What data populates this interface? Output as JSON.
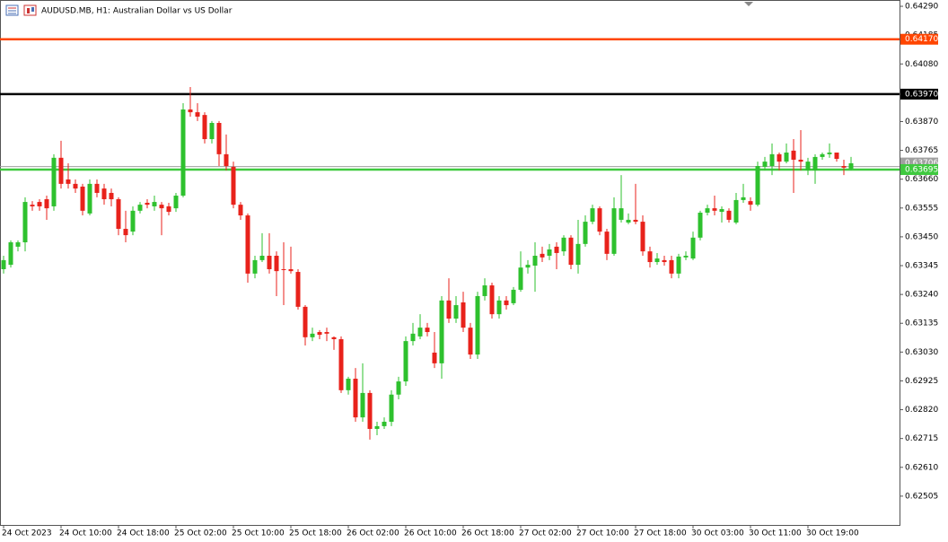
{
  "chart_data": {
    "type": "candlestick",
    "title": "AUDUSD.MB, H1:  Australian Dollar vs US Dollar",
    "categories": [
      "24 Oct 2023",
      null,
      null,
      null,
      null,
      null,
      null,
      null,
      "24 Oct 10:00",
      null,
      null,
      null,
      null,
      null,
      null,
      null,
      "24 Oct 18:00",
      null,
      null,
      null,
      null,
      null,
      null,
      null,
      "25 Oct 02:00",
      null,
      null,
      null,
      null,
      null,
      null,
      null,
      "25 Oct 10:00",
      null,
      null,
      null,
      null,
      null,
      null,
      null,
      "25 Oct 18:00",
      null,
      null,
      null,
      null,
      null,
      null,
      null,
      "26 Oct 02:00",
      null,
      null,
      null,
      null,
      null,
      null,
      null,
      "26 Oct 10:00",
      null,
      null,
      null,
      null,
      null,
      null,
      null,
      "26 Oct 18:00",
      null,
      null,
      null,
      null,
      null,
      null,
      null,
      "27 Oct 02:00",
      null,
      null,
      null,
      null,
      null,
      null,
      null,
      "27 Oct 10:00",
      null,
      null,
      null,
      null,
      null,
      null,
      null,
      "27 Oct 18:00",
      null,
      null,
      null,
      null,
      null,
      null,
      null,
      "30 Oct 03:00",
      null,
      null,
      null,
      null,
      null,
      null,
      null,
      "30 Oct 11:00",
      null,
      null,
      null,
      null,
      null,
      null,
      null,
      "30 Oct 19:00",
      null,
      null,
      null,
      null,
      null,
      null
    ],
    "open": [
      0.63332,
      0.63348,
      0.63414,
      0.6343,
      0.63567,
      0.63577,
      0.63587,
      0.63561,
      0.63738,
      0.63659,
      0.63643,
      0.63633,
      0.63535,
      0.63643,
      0.63626,
      0.6361,
      0.63587,
      0.63479,
      0.63469,
      0.63545,
      0.63574,
      0.63561,
      0.63567,
      0.63561,
      0.63554,
      0.636,
      0.63914,
      0.63904,
      0.63894,
      0.63806,
      0.63865,
      0.63751,
      0.63705,
      0.63567,
      0.63528,
      0.63316,
      0.63365,
      0.63381,
      0.63381,
      0.63332,
      0.63332,
      0.63322,
      0.63195,
      0.63084,
      0.63103,
      0.63103,
      0.63084,
      0.63077,
      0.62891,
      0.62933,
      0.62792,
      0.62881,
      0.6275,
      0.6276,
      0.62776,
      0.62875,
      0.62923,
      0.6307,
      0.63087,
      0.63119,
      0.63028,
      0.62989,
      0.63218,
      0.63152,
      0.63211,
      0.63119,
      0.63021,
      0.63234,
      0.63273,
      0.63168,
      0.63218,
      0.63208,
      0.63257,
      0.63338,
      0.63345,
      0.63388,
      0.63381,
      0.63414,
      0.63397,
      0.63447,
      0.63348,
      0.63424,
      0.63505,
      0.63554,
      0.63469,
      0.63388,
      0.63512,
      0.63502,
      0.63512,
      0.63505,
      0.63397,
      0.63358,
      0.63365,
      0.63365,
      0.63316,
      0.63375,
      0.63371,
      0.63447,
      0.63538,
      0.63554,
      0.63541,
      0.63545,
      0.63502,
      0.63584,
      0.6358,
      0.63567,
      0.63705,
      0.63708,
      0.63751,
      0.63724,
      0.63764,
      0.63731,
      0.63692,
      0.63692,
      0.63741,
      0.63751,
      0.63757,
      0.63708,
      0.63698
    ],
    "high": [
      0.63381,
      0.63437,
      0.63437,
      0.63594,
      0.6358,
      0.63587,
      0.636,
      0.63751,
      0.638,
      0.63718,
      0.63659,
      0.63643,
      0.63659,
      0.63659,
      0.63643,
      0.63626,
      0.63594,
      0.63545,
      0.63561,
      0.63577,
      0.63587,
      0.636,
      0.63577,
      0.63574,
      0.6361,
      0.63937,
      0.63996,
      0.63937,
      0.63904,
      0.63872,
      0.63872,
      0.63823,
      0.63724,
      0.63577,
      0.63535,
      0.63381,
      0.63463,
      0.63463,
      0.63397,
      0.6343,
      0.63414,
      0.63332,
      0.63201,
      0.63119,
      0.6311,
      0.63119,
      0.63087,
      0.63087,
      0.6294,
      0.62972,
      0.62989,
      0.62891,
      0.62776,
      0.62792,
      0.62891,
      0.6294,
      0.63087,
      0.63136,
      0.63168,
      0.63136,
      0.63103,
      0.63234,
      0.63299,
      0.63234,
      0.6325,
      0.63136,
      0.6325,
      0.63299,
      0.63283,
      0.63234,
      0.63234,
      0.63267,
      0.63397,
      0.63365,
      0.6343,
      0.63414,
      0.63424,
      0.6343,
      0.63456,
      0.63456,
      0.63512,
      0.63528,
      0.63567,
      0.63561,
      0.63479,
      0.63594,
      0.63675,
      0.63535,
      0.63643,
      0.63528,
      0.63414,
      0.63391,
      0.63381,
      0.63381,
      0.63388,
      0.63397,
      0.63469,
      0.63545,
      0.63567,
      0.636,
      0.63561,
      0.63554,
      0.6361,
      0.63643,
      0.63594,
      0.63724,
      0.63741,
      0.6379,
      0.63757,
      0.6379,
      0.63806,
      0.63839,
      0.63738,
      0.63751,
      0.63757,
      0.6379,
      0.63757,
      0.63731,
      0.63741
    ],
    "low": [
      0.63316,
      0.63338,
      0.63397,
      0.63397,
      0.63545,
      0.63545,
      0.63512,
      0.63545,
      0.63626,
      0.63626,
      0.6361,
      0.63528,
      0.63528,
      0.63594,
      0.63567,
      0.63561,
      0.63456,
      0.6343,
      0.63456,
      0.63535,
      0.63554,
      0.63545,
      0.63456,
      0.63528,
      0.63541,
      0.63594,
      0.63888,
      0.63872,
      0.6379,
      0.6379,
      0.63708,
      0.63692,
      0.63554,
      0.63512,
      0.63283,
      0.63299,
      0.63358,
      0.63316,
      0.63234,
      0.63201,
      0.63316,
      0.63185,
      0.63054,
      0.6307,
      0.63077,
      0.6307,
      0.63038,
      0.62881,
      0.62875,
      0.62776,
      0.62776,
      0.62711,
      0.62727,
      0.6275,
      0.6276,
      0.62858,
      0.62907,
      0.63054,
      0.63077,
      0.63087,
      0.62972,
      0.62933,
      0.63136,
      0.63136,
      0.63103,
      0.63005,
      0.63005,
      0.63218,
      0.63152,
      0.63152,
      0.63185,
      0.63201,
      0.6325,
      0.63316,
      0.6325,
      0.63358,
      0.63365,
      0.63332,
      0.63381,
      0.63332,
      0.63316,
      0.63414,
      0.63496,
      0.63456,
      0.63365,
      0.63381,
      0.63502,
      0.63496,
      0.63496,
      0.63381,
      0.63338,
      0.63348,
      0.63345,
      0.63299,
      0.63299,
      0.63365,
      0.63365,
      0.63437,
      0.63528,
      0.63528,
      0.63502,
      0.63502,
      0.63496,
      0.63574,
      0.63545,
      0.63561,
      0.63692,
      0.63675,
      0.63692,
      0.63718,
      0.6361,
      0.63692,
      0.63675,
      0.63643,
      0.63731,
      0.63738,
      0.63724,
      0.63675,
      0.63692
    ],
    "close": [
      0.63365,
      0.6343,
      0.6343,
      0.63577,
      0.63561,
      0.63561,
      0.63554,
      0.63738,
      0.63643,
      0.63643,
      0.63626,
      0.63545,
      0.63643,
      0.6361,
      0.63587,
      0.63587,
      0.63479,
      0.63456,
      0.63545,
      0.63567,
      0.63567,
      0.63577,
      0.63554,
      0.63541,
      0.636,
      0.63914,
      0.63904,
      0.63888,
      0.63806,
      0.63865,
      0.63751,
      0.63708,
      0.63567,
      0.63528,
      0.63316,
      0.63365,
      0.63381,
      0.63332,
      0.63325,
      0.63329,
      0.63325,
      0.63195,
      0.63084,
      0.63097,
      0.63093,
      0.63097,
      0.63077,
      0.62891,
      0.62933,
      0.62792,
      0.62881,
      0.6275,
      0.6276,
      0.62776,
      0.62875,
      0.62923,
      0.6307,
      0.63097,
      0.63119,
      0.63103,
      0.62989,
      0.63218,
      0.63152,
      0.63201,
      0.63119,
      0.63021,
      0.63234,
      0.63273,
      0.63168,
      0.63218,
      0.63201,
      0.63257,
      0.63338,
      0.63348,
      0.63381,
      0.63375,
      0.63404,
      0.63391,
      0.63447,
      0.63348,
      0.63424,
      0.63505,
      0.63554,
      0.63469,
      0.63388,
      0.63554,
      0.63554,
      0.63512,
      0.63505,
      0.63397,
      0.63358,
      0.63371,
      0.63358,
      0.63316,
      0.63378,
      0.63381,
      0.63447,
      0.63538,
      0.63554,
      0.63545,
      0.63551,
      0.63512,
      0.63584,
      0.63594,
      0.63567,
      0.63708,
      0.63724,
      0.63751,
      0.63724,
      0.63757,
      0.63731,
      0.63724,
      0.63724,
      0.63741,
      0.63751,
      0.63757,
      0.63734,
      0.63702,
      0.63718
    ],
    "up_color": "#2ec12e",
    "down_color": "#e8221b",
    "ylim": [
      0.624,
      0.64313
    ],
    "yticks": [
      {
        "value": 0.6429,
        "label": "0.64290"
      },
      0.64185,
      {
        "value": 0.6408,
        "label": "0.64080"
      },
      0.63975,
      {
        "value": 0.6387,
        "label": "0.63870"
      },
      0.63765,
      {
        "value": 0.6366,
        "label": "0.63660"
      },
      0.63555,
      {
        "value": 0.6345,
        "label": "0.63450"
      },
      0.63345,
      {
        "value": 0.6324,
        "label": "0.63240"
      },
      0.63135,
      {
        "value": 0.6303,
        "label": "0.63030"
      },
      0.62925,
      {
        "value": 0.6282,
        "label": "0.62820"
      },
      0.62715,
      {
        "value": 0.6261,
        "label": "0.62610"
      },
      0.62505
    ],
    "levels": [
      {
        "value": 0.6417,
        "label": "0.64170",
        "color": "#ff4500"
      },
      {
        "value": 0.6397,
        "label": "0.63970",
        "color": "#000000"
      },
      {
        "value": 0.63706,
        "label": "0.63706",
        "color": "#a0a0a0"
      },
      {
        "value": 0.63695,
        "label": "0.63695",
        "color": "#3fc93f"
      }
    ]
  }
}
